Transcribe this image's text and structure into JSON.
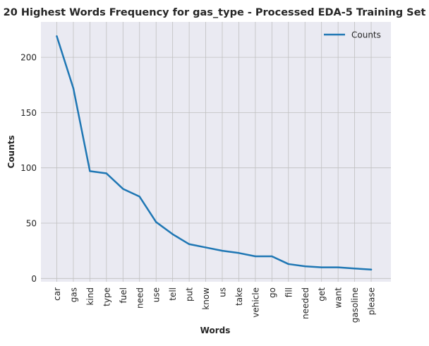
{
  "chart_data": {
    "type": "line",
    "title": "20 Highest Words Frequency for gas_type - Processed EDA-5 Training Set",
    "xlabel": "Words",
    "ylabel": "Counts",
    "categories": [
      "car",
      "gas",
      "kind",
      "type",
      "fuel",
      "need",
      "use",
      "tell",
      "put",
      "know",
      "us",
      "take",
      "vehicle",
      "go",
      "fill",
      "needed",
      "get",
      "want",
      "gasoline",
      "please"
    ],
    "series": [
      {
        "name": "Counts",
        "values": [
          219,
          172,
          97,
          95,
          81,
          74,
          51,
          40,
          31,
          28,
          25,
          23,
          20,
          20,
          13,
          11,
          10,
          10,
          9,
          8
        ],
        "color": "#1f77b4"
      }
    ],
    "ylim": [
      -3,
      232
    ],
    "yticks": [
      0,
      50,
      100,
      150,
      200
    ],
    "grid": true,
    "legend_position": "top-right"
  }
}
